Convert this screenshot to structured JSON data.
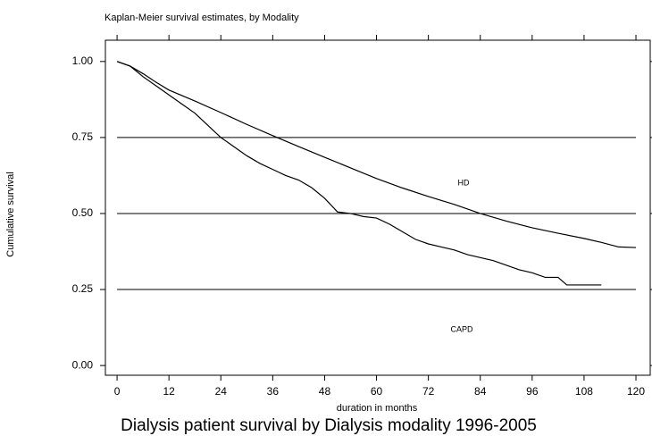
{
  "chart_data": {
    "type": "line",
    "title": "Kaplan-Meier survival estimates, by Modality",
    "caption": "Dialysis patient survival by Dialysis modality 1996-2005",
    "x_label": "duration in months",
    "y_label": "Cumulative survival",
    "series": [
      {
        "name": "HD",
        "color": "#000000",
        "x": [
          0,
          3,
          6,
          9,
          12,
          18,
          24,
          30,
          36,
          42,
          48,
          54,
          60,
          66,
          72,
          78,
          84,
          90,
          96,
          102,
          108,
          112,
          116,
          120
        ],
        "values": [
          1.0,
          0.985,
          0.96,
          0.932,
          0.906,
          0.87,
          0.832,
          0.793,
          0.756,
          0.72,
          0.685,
          0.65,
          0.615,
          0.584,
          0.556,
          0.53,
          0.5,
          0.475,
          0.453,
          0.435,
          0.418,
          0.405,
          0.39,
          0.388
        ]
      },
      {
        "name": "CAPD",
        "color": "#000000",
        "x": [
          0,
          3,
          6,
          9,
          12,
          15,
          18,
          21,
          24,
          27,
          30,
          33,
          36,
          39,
          42,
          45,
          48,
          51,
          54,
          57,
          60,
          63,
          66,
          69,
          72,
          75,
          78,
          81,
          84,
          87,
          90,
          93,
          96,
          99,
          102,
          104,
          112
        ],
        "values": [
          1.0,
          0.985,
          0.95,
          0.92,
          0.89,
          0.86,
          0.83,
          0.79,
          0.75,
          0.72,
          0.69,
          0.665,
          0.645,
          0.625,
          0.61,
          0.585,
          0.55,
          0.505,
          0.5,
          0.49,
          0.485,
          0.465,
          0.44,
          0.415,
          0.4,
          0.39,
          0.38,
          0.365,
          0.355,
          0.345,
          0.33,
          0.315,
          0.305,
          0.29,
          0.29,
          0.265,
          0.265
        ]
      }
    ],
    "xlim": [
      -2.7,
      123.3
    ],
    "xticks": [
      0,
      12,
      24,
      36,
      48,
      60,
      72,
      84,
      96,
      108,
      120
    ],
    "ylim": [
      -0.032,
      1.07
    ],
    "yticks": [
      {
        "value": 0,
        "label": "0.00"
      },
      0.25,
      {
        "value": 0.5,
        "label": "0.50"
      },
      0.75,
      {
        "value": 1,
        "label": "1.00"
      }
    ],
    "grid": true
  }
}
